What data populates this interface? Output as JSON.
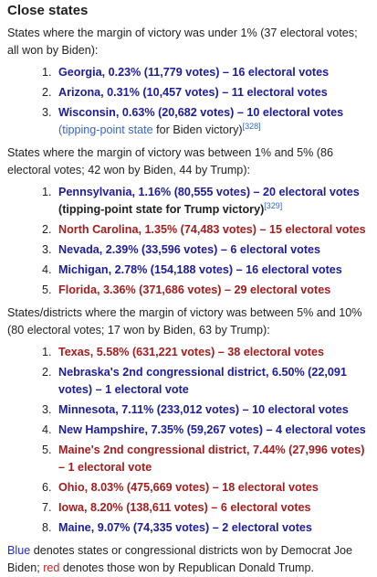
{
  "title": "Close states",
  "sections": [
    {
      "intro": "States where the margin of victory was under 1% (37 electoral votes; all won by Biden):",
      "items": [
        {
          "text": "Georgia, 0.23% (11,779 votes) – 16 electoral votes",
          "color": "#1c1c9c"
        },
        {
          "text": "Arizona, 0.31% (10,457 votes) – 11 electoral votes",
          "color": "#1c1c9c"
        },
        {
          "text": "Wisconsin, 0.63% (20,682 votes) – 10 electoral votes",
          "color": "#1c1c9c",
          "note_link": "(tipping-point state",
          "note_rest": " for Biden victory)",
          "ref": "[328]"
        }
      ]
    },
    {
      "intro": "States where the margin of victory was between 1% and 5% (86 electoral votes; 42 won by Biden, 44 by Trump):",
      "items": [
        {
          "text": "Pennsylvania, 1.16% (80,555 votes) – 20 electoral votes",
          "color": "#1c1c9c",
          "note": "(tipping-point state for Trump victory)",
          "ref": "[329]"
        },
        {
          "text": "North Carolina, 1.35% (74,483 votes) – 15 electoral votes",
          "color": "#a61c1c"
        },
        {
          "text": "Nevada, 2.39% (33,596 votes) – 6 electoral votes",
          "color": "#1c1c9c"
        },
        {
          "text": "Michigan, 2.78% (154,188 votes) – 16 electoral votes",
          "color": "#1c1c9c"
        },
        {
          "text": "Florida, 3.36% (371,686 votes) – 29 electoral votes",
          "color": "#a61c1c"
        }
      ]
    },
    {
      "intro": "States/districts where the margin of victory was between 5% and 10% (80 electoral votes; 17 won by Biden, 63 by Trump):",
      "items": [
        {
          "text": "Texas, 5.58% (631,221 votes) – 38 electoral votes",
          "color": "#a61c1c"
        },
        {
          "text": "Nebraska's 2nd congressional district, 6.50% (22,091 votes) – 1 electoral vote",
          "color": "#1c1c9c"
        },
        {
          "text": "Minnesota, 7.11% (233,012 votes) – 10 electoral votes",
          "color": "#1c1c9c"
        },
        {
          "text": "New Hampshire, 7.35% (59,267 votes) – 4 electoral votes",
          "color": "#1c1c9c"
        },
        {
          "text": "Maine's 2nd congressional district, 7.44% (27,996 votes) – 1 electoral vote",
          "color": "#a61c1c"
        },
        {
          "text": "Ohio, 8.03% (475,669 votes) – 18 electoral votes",
          "color": "#a61c1c"
        },
        {
          "text": "Iowa, 8.20% (138,611 votes) – 6 electoral votes",
          "color": "#a61c1c"
        },
        {
          "text": "Maine, 9.07% (74,335 votes) – 2 electoral votes",
          "color": "#1c1c9c"
        }
      ]
    }
  ],
  "footer": [
    {
      "text": "Blue",
      "color": "#2a2ad0"
    },
    {
      "text": " denotes states or congressional districts won by Democrat Joe Biden; "
    },
    {
      "text": "red",
      "color": "#d02020"
    },
    {
      "text": " denotes those won by Republican Donald Trump."
    }
  ]
}
